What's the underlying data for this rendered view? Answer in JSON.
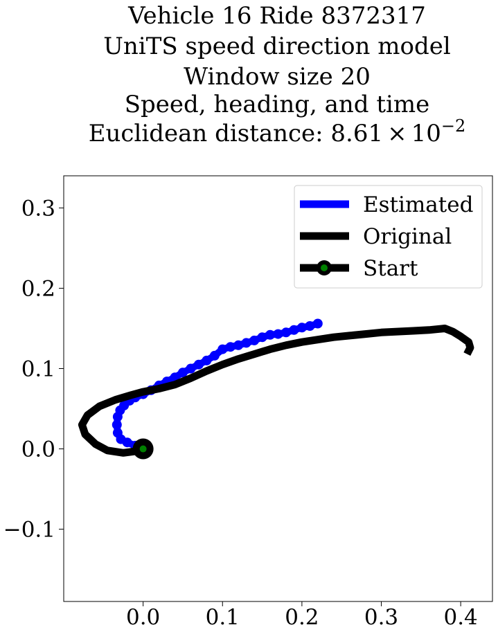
{
  "chart_data": {
    "type": "line",
    "title_lines": [
      "Vehicle 16 Ride 8372317",
      "UniTS speed direction model",
      "Window size 20",
      "Speed, heading, and time"
    ],
    "title_distance": {
      "prefix": "Euclidean distance: 8.61",
      "times": "×",
      "base": "10",
      "exponent": "−2"
    },
    "xlabel": "",
    "ylabel": "",
    "xlim": [
      -0.1,
      0.44
    ],
    "ylim": [
      -0.19,
      0.34
    ],
    "x_ticks": [
      {
        "value": 0.0,
        "label": "0.0"
      },
      {
        "value": 0.1,
        "label": "0.1"
      },
      {
        "value": 0.2,
        "label": "0.2"
      },
      {
        "value": 0.3,
        "label": "0.3"
      },
      {
        "value": 0.4,
        "label": "0.4"
      }
    ],
    "y_ticks": [
      {
        "value": -0.1,
        "label": "−0.1"
      },
      {
        "value": 0.0,
        "label": "0.0"
      },
      {
        "value": 0.1,
        "label": "0.1"
      },
      {
        "value": 0.2,
        "label": "0.2"
      },
      {
        "value": 0.3,
        "label": "0.3"
      }
    ],
    "grid": false,
    "legend_position": "top-right",
    "series": [
      {
        "name": "Estimated",
        "color": "#0000ff",
        "marker": "circle",
        "points": [
          [
            0.0,
            0.0
          ],
          [
            -0.01,
            0.004
          ],
          [
            -0.02,
            0.008
          ],
          [
            -0.028,
            0.012
          ],
          [
            -0.032,
            0.02
          ],
          [
            -0.033,
            0.03
          ],
          [
            -0.032,
            0.04
          ],
          [
            -0.029,
            0.048
          ],
          [
            -0.024,
            0.054
          ],
          [
            -0.017,
            0.06
          ],
          [
            -0.01,
            0.064
          ],
          [
            0.0,
            0.068
          ],
          [
            0.01,
            0.073
          ],
          [
            0.02,
            0.079
          ],
          [
            0.03,
            0.084
          ],
          [
            0.04,
            0.089
          ],
          [
            0.05,
            0.095
          ],
          [
            0.06,
            0.1
          ],
          [
            0.07,
            0.105
          ],
          [
            0.08,
            0.11
          ],
          [
            0.09,
            0.116
          ],
          [
            0.1,
            0.124
          ],
          [
            0.11,
            0.127
          ],
          [
            0.12,
            0.129
          ],
          [
            0.13,
            0.132
          ],
          [
            0.14,
            0.135
          ],
          [
            0.15,
            0.139
          ],
          [
            0.16,
            0.142
          ],
          [
            0.17,
            0.143
          ],
          [
            0.18,
            0.145
          ],
          [
            0.19,
            0.148
          ],
          [
            0.2,
            0.151
          ],
          [
            0.21,
            0.153
          ],
          [
            0.22,
            0.156
          ]
        ]
      },
      {
        "name": "Original",
        "color": "#000000",
        "points": [
          [
            0.0,
            0.0
          ],
          [
            -0.01,
            -0.003
          ],
          [
            -0.025,
            -0.005
          ],
          [
            -0.045,
            -0.002
          ],
          [
            -0.06,
            0.006
          ],
          [
            -0.073,
            0.018
          ],
          [
            -0.077,
            0.03
          ],
          [
            -0.07,
            0.042
          ],
          [
            -0.055,
            0.053
          ],
          [
            -0.035,
            0.061
          ],
          [
            -0.015,
            0.067
          ],
          [
            0.0,
            0.071
          ],
          [
            0.02,
            0.075
          ],
          [
            0.04,
            0.08
          ],
          [
            0.06,
            0.088
          ],
          [
            0.08,
            0.097
          ],
          [
            0.1,
            0.105
          ],
          [
            0.12,
            0.112
          ],
          [
            0.14,
            0.118
          ],
          [
            0.16,
            0.124
          ],
          [
            0.18,
            0.129
          ],
          [
            0.2,
            0.133
          ],
          [
            0.22,
            0.136
          ],
          [
            0.24,
            0.139
          ],
          [
            0.26,
            0.141
          ],
          [
            0.28,
            0.143
          ],
          [
            0.3,
            0.145
          ],
          [
            0.32,
            0.146
          ],
          [
            0.34,
            0.147
          ],
          [
            0.36,
            0.148
          ],
          [
            0.38,
            0.15
          ],
          [
            0.39,
            0.146
          ],
          [
            0.4,
            0.14
          ],
          [
            0.41,
            0.133
          ],
          [
            0.412,
            0.126
          ],
          [
            0.408,
            0.118
          ]
        ]
      }
    ],
    "start_point": {
      "name": "Start",
      "x": 0.0,
      "y": 0.0,
      "color": "#008000",
      "edge_color": "#000000"
    },
    "legend": [
      {
        "label": "Estimated",
        "color": "#0000ff",
        "kind": "line"
      },
      {
        "label": "Original",
        "color": "#000000",
        "kind": "line"
      },
      {
        "label": "Start",
        "color": "#000000",
        "marker_color": "#008000",
        "kind": "line-marker"
      }
    ]
  }
}
